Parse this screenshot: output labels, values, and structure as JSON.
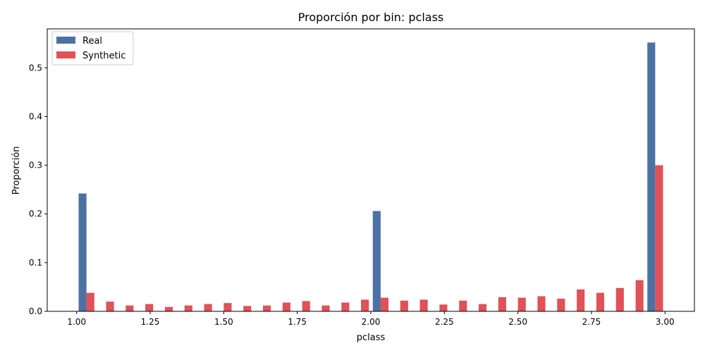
{
  "chart_data": {
    "type": "bar",
    "title": "Proporción por bin: pclass",
    "xlabel": "pclass",
    "ylabel": "Proporción",
    "xlim": [
      0.9,
      3.1
    ],
    "ylim": [
      0,
      0.58
    ],
    "xticks": [
      "1.00",
      "1.25",
      "1.50",
      "1.75",
      "2.00",
      "2.25",
      "2.50",
      "2.75",
      "3.00"
    ],
    "yticks": [
      "0.0",
      "0.1",
      "0.2",
      "0.3",
      "0.4",
      "0.5"
    ],
    "legend_position": "top-left",
    "bin_width": 0.0667,
    "bin_starts": [
      1.0,
      1.0667,
      1.1333,
      1.2,
      1.2667,
      1.3333,
      1.4,
      1.4667,
      1.5333,
      1.6,
      1.6667,
      1.7333,
      1.8,
      1.8667,
      1.9333,
      2.0,
      2.0667,
      2.1333,
      2.2,
      2.2667,
      2.3333,
      2.4,
      2.4667,
      2.5333,
      2.6,
      2.6667,
      2.7333,
      2.8,
      2.8667,
      2.9333
    ],
    "series": [
      {
        "name": "Real",
        "color": "#4c72a4",
        "values": [
          0.242,
          0,
          0,
          0,
          0,
          0,
          0,
          0,
          0,
          0,
          0,
          0,
          0,
          0,
          0,
          0.206,
          0,
          0,
          0,
          0,
          0,
          0,
          0,
          0,
          0,
          0,
          0,
          0,
          0,
          0.552
        ]
      },
      {
        "name": "Synthetic",
        "color": "#e05158",
        "values": [
          0.038,
          0.02,
          0.012,
          0.015,
          0.009,
          0.012,
          0.015,
          0.017,
          0.011,
          0.012,
          0.018,
          0.021,
          0.012,
          0.018,
          0.024,
          0.028,
          0.022,
          0.024,
          0.014,
          0.022,
          0.015,
          0.029,
          0.028,
          0.031,
          0.026,
          0.045,
          0.038,
          0.048,
          0.064,
          0.3
        ]
      }
    ]
  }
}
